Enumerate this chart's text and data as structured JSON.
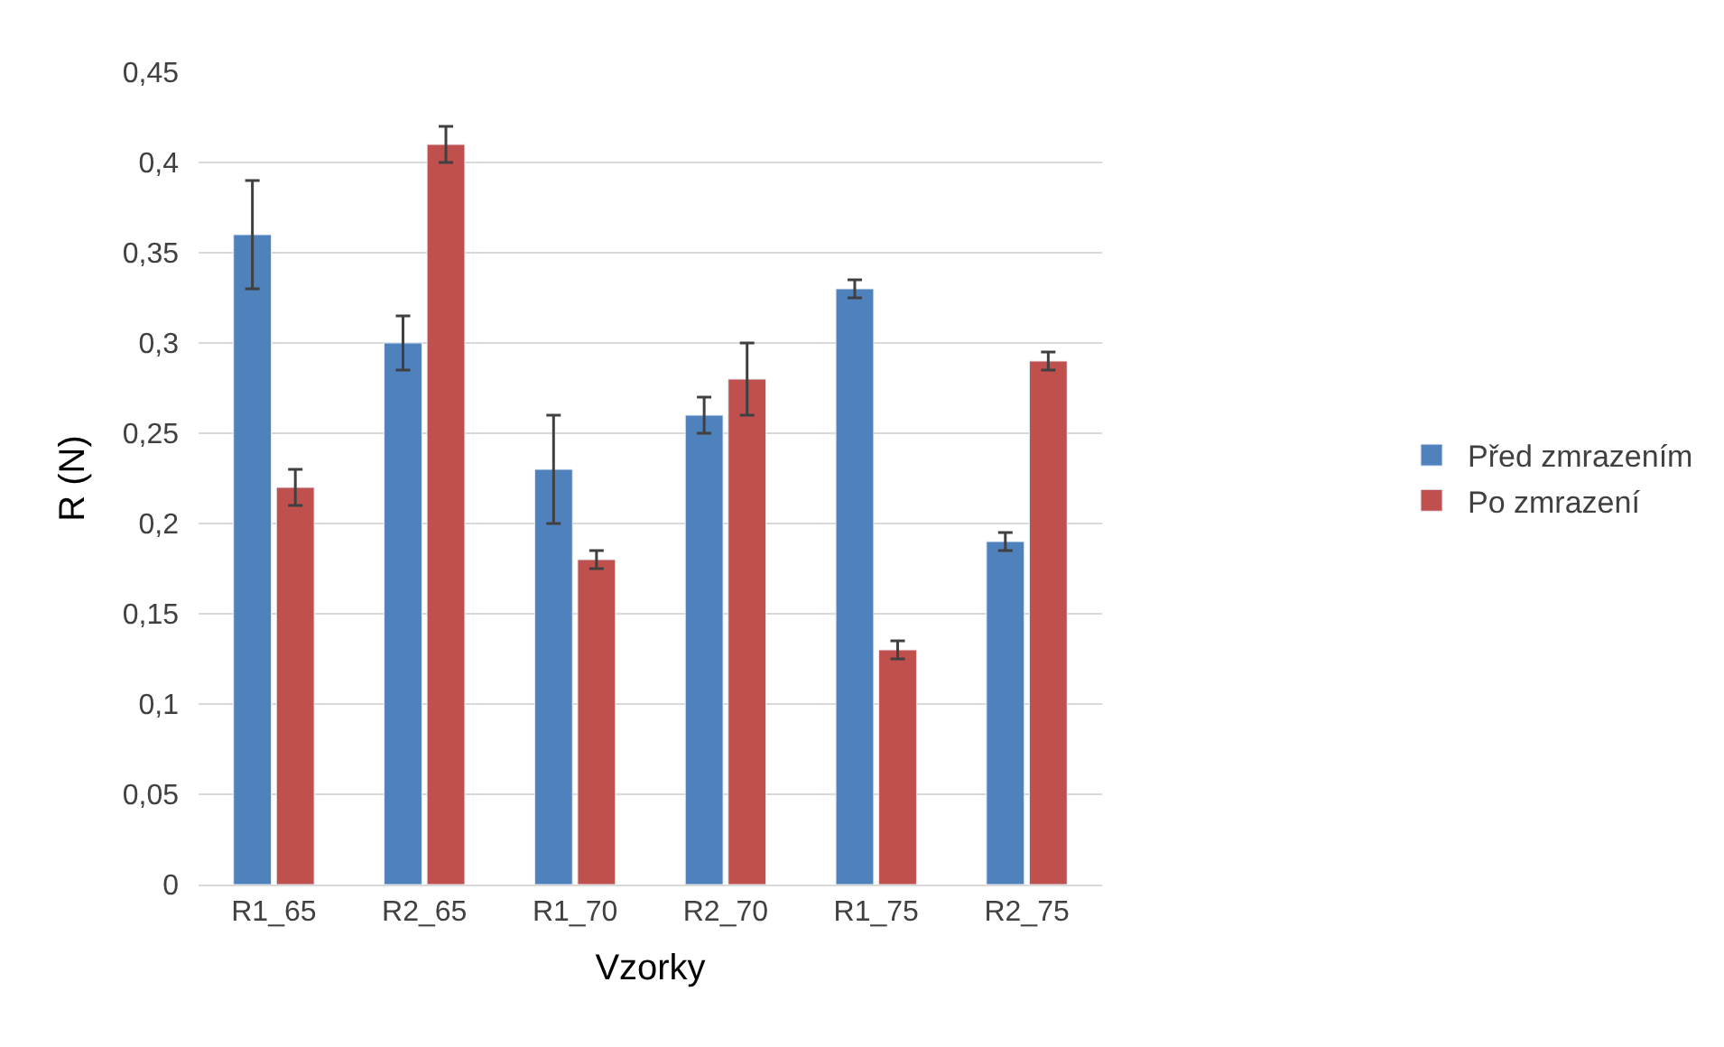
{
  "chart_data": {
    "type": "bar",
    "xlabel": "Vzorky",
    "ylabel": "R (N)",
    "categories": [
      "R1_65",
      "R2_65",
      "R1_70",
      "R2_70",
      "R1_75",
      "R2_75"
    ],
    "series": [
      {
        "name": "Před zmrazením",
        "color": "#4f81bd",
        "values": [
          0.36,
          0.3,
          0.23,
          0.26,
          0.33,
          0.19
        ],
        "errors": [
          0.03,
          0.015,
          0.03,
          0.01,
          0.005,
          0.005
        ]
      },
      {
        "name": "Po zmrazení",
        "color": "#c0504d",
        "values": [
          0.22,
          0.41,
          0.18,
          0.28,
          0.13,
          0.29
        ],
        "errors": [
          0.01,
          0.01,
          0.005,
          0.02,
          0.005,
          0.005
        ]
      }
    ],
    "ylim": [
      0,
      0.45
    ],
    "yticks": [
      0,
      {
        "value": 0.05,
        "label": "0,05"
      },
      {
        "value": 0.1,
        "label": "0,1"
      },
      {
        "value": 0.15,
        "label": "0,15"
      },
      {
        "value": 0.2,
        "label": "0,2"
      },
      {
        "value": 0.25,
        "label": "0,25"
      },
      {
        "value": 0.3,
        "label": "0,3"
      },
      {
        "value": 0.35,
        "label": "0,35"
      },
      {
        "value": 0.4,
        "label": "0,4"
      },
      {
        "value": 0.45,
        "label": "0,45"
      }
    ],
    "grid": "y",
    "legend": "right"
  }
}
